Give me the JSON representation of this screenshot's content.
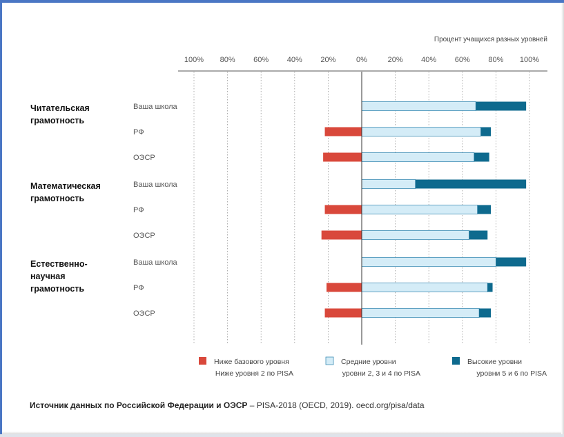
{
  "chart_data": {
    "type": "bar",
    "orientation": "horizontal",
    "stacked": true,
    "title": "",
    "axis_caption": "Процент учащихся разных уровней",
    "x_ticks": [
      "100%",
      "80%",
      "60%",
      "40%",
      "20%",
      "0%",
      "20%",
      "40%",
      "60%",
      "80%",
      "100%"
    ],
    "xlim": [
      -100,
      100
    ],
    "grid": true,
    "legend_position": "bottom",
    "groups": [
      {
        "label": "Читательская грамотность",
        "label_lines": [
          "Читательская",
          "грамотность"
        ],
        "rows": [
          {
            "label": "Ваша школа",
            "below": 0,
            "middle": 68,
            "high": 30
          },
          {
            "label": "РФ",
            "below": 22,
            "middle": 71,
            "high": 6
          },
          {
            "label": "ОЭСР",
            "below": 23,
            "middle": 67,
            "high": 9
          }
        ]
      },
      {
        "label": "Математическая грамотность",
        "label_lines": [
          "Математическая",
          "грамотность"
        ],
        "rows": [
          {
            "label": "Ваша школа",
            "below": 0,
            "middle": 32,
            "high": 66
          },
          {
            "label": "РФ",
            "below": 22,
            "middle": 69,
            "high": 8
          },
          {
            "label": "ОЭСР",
            "below": 24,
            "middle": 64,
            "high": 11
          }
        ]
      },
      {
        "label": "Естественно-научная грамотность",
        "label_lines": [
          "Естественно-",
          "научная",
          "грамотность"
        ],
        "rows": [
          {
            "label": "Ваша школа",
            "below": 0,
            "middle": 80,
            "high": 18
          },
          {
            "label": "РФ",
            "below": 21,
            "middle": 75,
            "high": 3
          },
          {
            "label": "ОЭСР",
            "below": 22,
            "middle": 70,
            "high": 7
          }
        ]
      }
    ],
    "series": [
      {
        "key": "below",
        "name": "Ниже базового уровня",
        "sub": "Ниже уровня 2 по PISA",
        "color": "#d9483b"
      },
      {
        "key": "middle",
        "name": "Средние уровни",
        "sub": "уровни 2, 3 и 4 по PISA",
        "color": "#d4ecf7"
      },
      {
        "key": "high",
        "name": "Высокие уровни",
        "sub": "уровни 5 и 6 по PISA",
        "color": "#0e6a8e"
      }
    ]
  },
  "source": {
    "bold": "Источник данных по Российской Федерации и ОЭСР",
    "rest": " – PISA-2018 (OECD, 2019). oecd.org/pisa/data"
  }
}
